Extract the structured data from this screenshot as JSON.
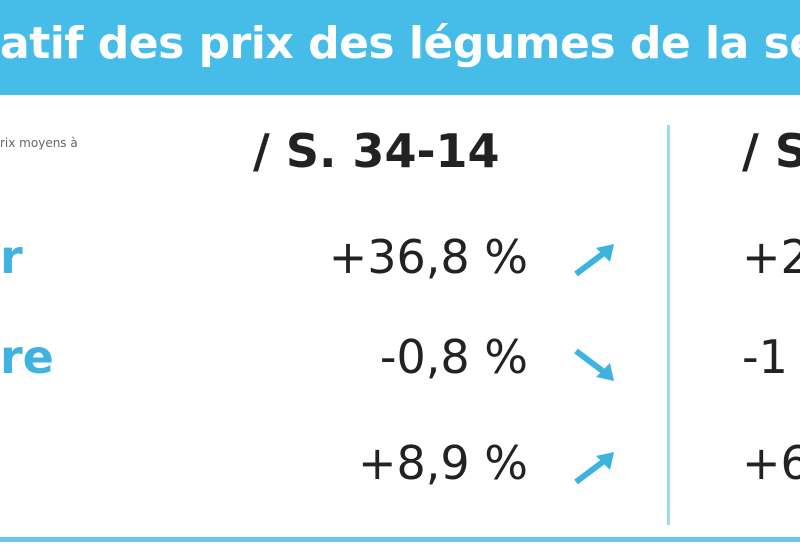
{
  "header": {
    "title": "atif des prix des légumes de la ser"
  },
  "table": {
    "note": "rix moyens à",
    "columns": [
      "/ S. 34-14",
      "/ S"
    ],
    "rows": [
      {
        "label": "r",
        "cells": [
          "+36,8 %",
          "+2"
        ]
      },
      {
        "label": "re",
        "cells": [
          "-0,8 %",
          "-1"
        ]
      },
      {
        "cells": [
          "+8,9 %",
          "+6"
        ]
      }
    ]
  }
}
